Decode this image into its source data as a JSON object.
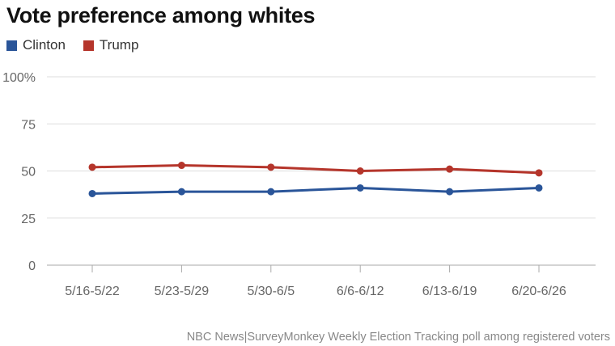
{
  "chart_data": {
    "type": "line",
    "title": "Vote preference among whites",
    "categories": [
      "5/16-5/22",
      "5/23-5/29",
      "5/30-6/5",
      "6/6-6/12",
      "6/13-6/19",
      "6/20-6/26"
    ],
    "series": [
      {
        "name": "Clinton",
        "color": "#2a5599",
        "values": [
          38,
          39,
          39,
          41,
          39,
          41
        ]
      },
      {
        "name": "Trump",
        "color": "#b5352b",
        "values": [
          52,
          53,
          52,
          50,
          51,
          49
        ]
      }
    ],
    "y_ticks": [
      "0",
      "25",
      "50",
      "75",
      "100%"
    ],
    "y_tick_values": [
      0,
      25,
      50,
      75,
      100
    ],
    "ylim": [
      0,
      100
    ],
    "grid": true,
    "legend_position": "top-left",
    "source": "NBC News|SurveyMonkey Weekly Election Tracking poll among registered voters"
  }
}
